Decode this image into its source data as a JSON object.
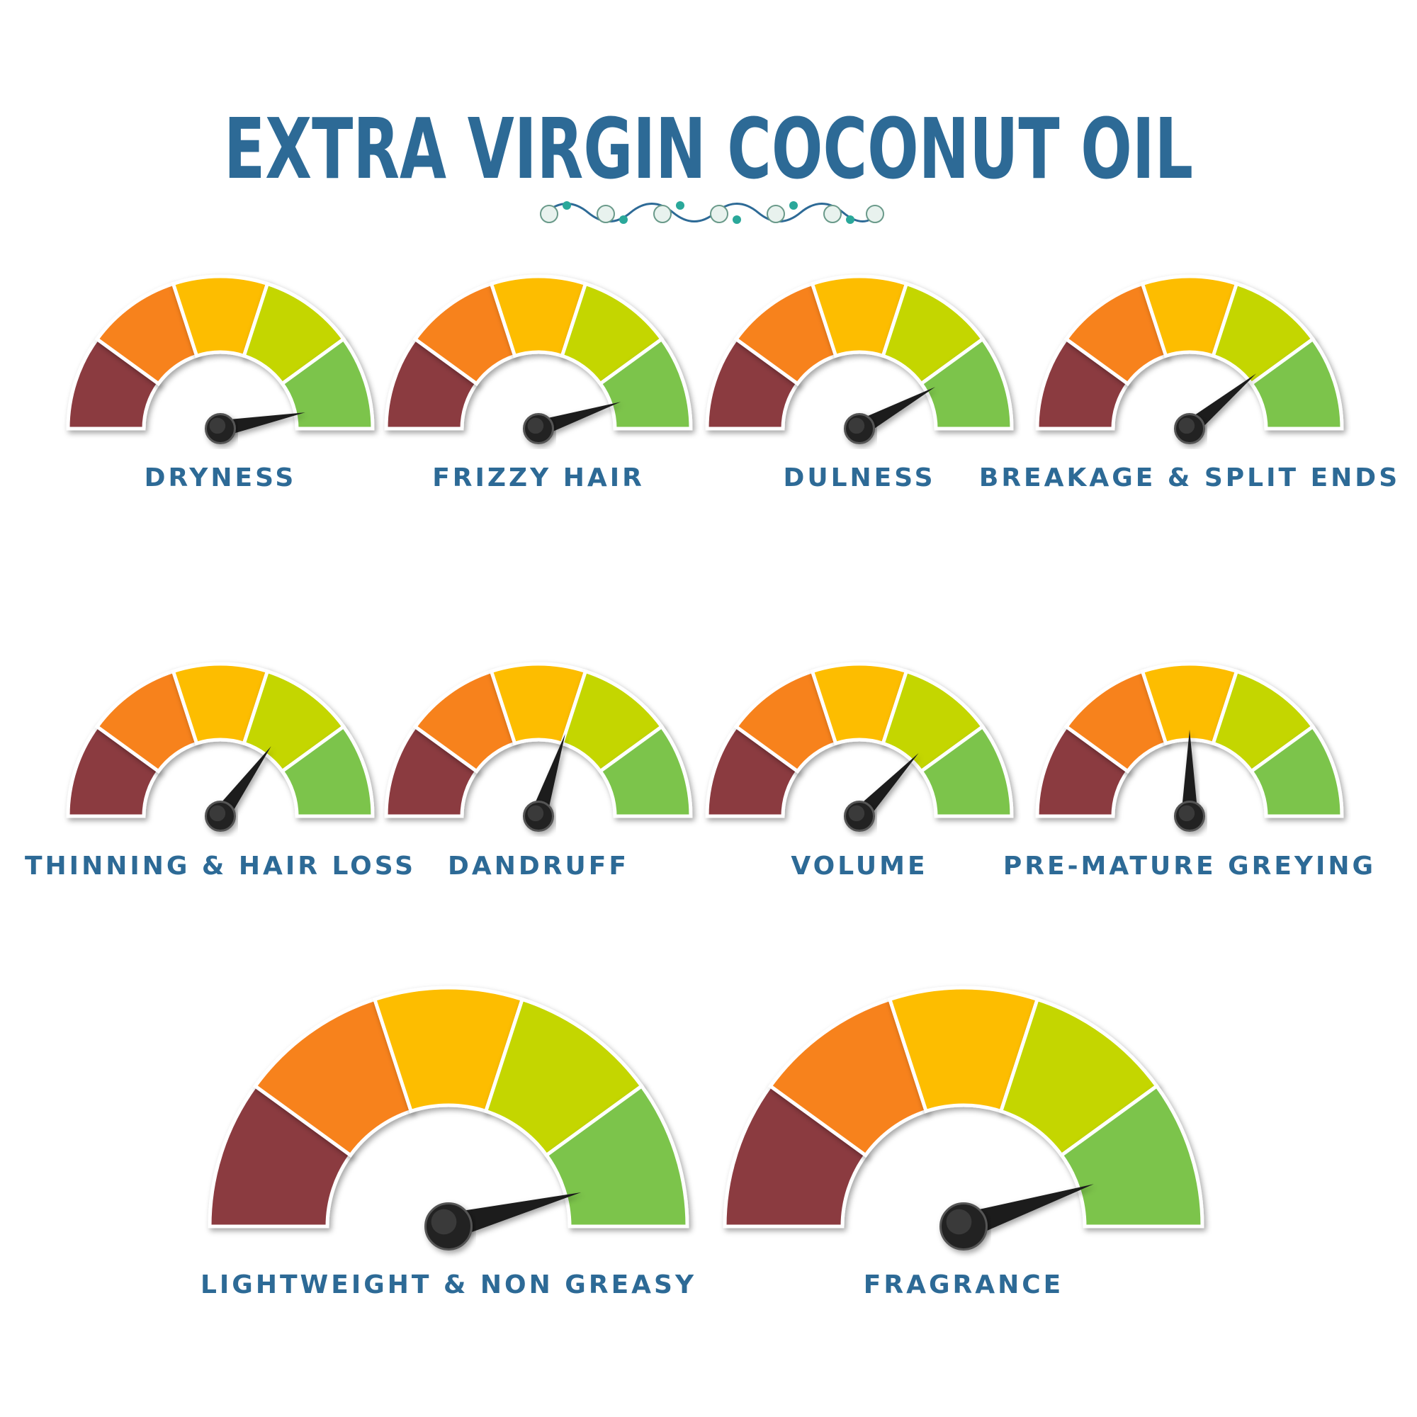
{
  "chart_data": {
    "type": "gauge",
    "title": "EXTRA VIRGIN COCONUT OIL",
    "categories": [
      "DRYNESS",
      "FRIZZY HAIR",
      "DULNESS",
      "BREAKAGE & SPLIT ENDS",
      "THINNING & HAIR LOSS",
      "DANDRUFF",
      "VOLUME",
      "PRE-MATURE GREYING",
      "LIGHTWEIGHT & NON GREASY",
      "FRAGRANCE"
    ],
    "values": [
      4.7,
      4.5,
      4.2,
      3.9,
      3.5,
      3.0,
      3.7,
      2.5,
      4.6,
      4.5
    ],
    "ylim": [
      0,
      5
    ],
    "colors": [
      "#8b3a40",
      "#f7821d",
      "#fdbd00",
      "#c4d600",
      "#7bc44c"
    ],
    "needle_color": "#1e1e1e",
    "label_color": "#2d6a96"
  }
}
